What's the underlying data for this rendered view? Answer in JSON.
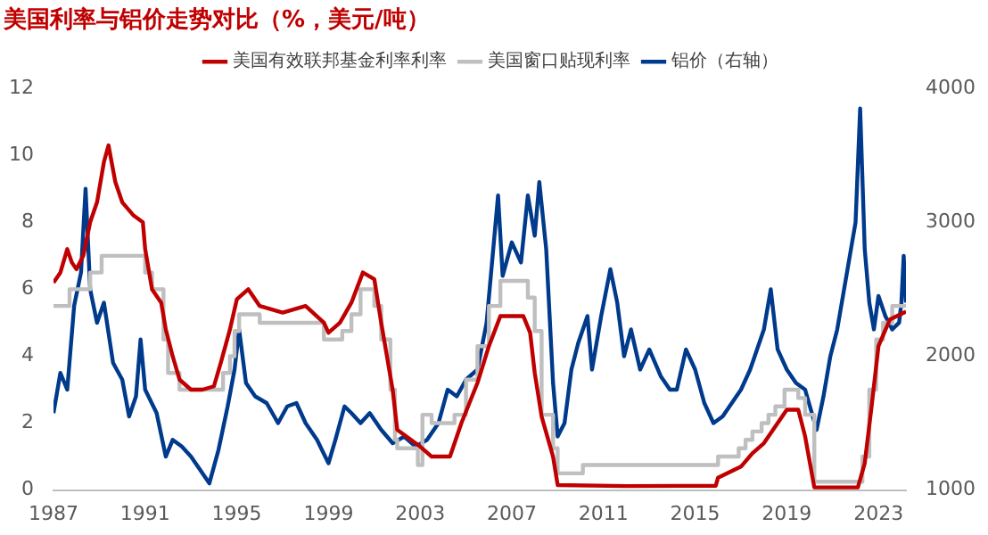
{
  "chart_data": {
    "type": "line",
    "title": "美国利率与铝价走势对比（%，美元/吨）",
    "xlim": [
      1987,
      2024.2
    ],
    "xticks": [
      1987,
      1991,
      1995,
      1999,
      2003,
      2007,
      2011,
      2015,
      2019,
      2023
    ],
    "ylim": [
      0,
      12
    ],
    "yticks": [
      0,
      2,
      4,
      6,
      8,
      10,
      12
    ],
    "y2lim": [
      1000,
      4000
    ],
    "y2ticks": [
      1000,
      2000,
      3000,
      4000
    ],
    "grid": false,
    "legend": "top",
    "marker": "none",
    "line_style": "solid",
    "series": [
      {
        "name": "美国有效联邦基金利率利率",
        "color": "#c00000",
        "x": [
          1987.0,
          1987.3,
          1987.6,
          1987.8,
          1988.0,
          1988.3,
          1988.6,
          1988.9,
          1989.2,
          1989.4,
          1989.7,
          1990.0,
          1990.5,
          1990.9,
          1991.0,
          1991.3,
          1991.7,
          1991.9,
          1992.2,
          1992.5,
          1993.0,
          1993.5,
          1994.0,
          1994.3,
          1994.7,
          1995.0,
          1995.5,
          1996.0,
          1997.0,
          1998.0,
          1998.8,
          1999.0,
          1999.5,
          2000.0,
          2000.5,
          2001.0,
          2001.3,
          2001.8,
          2002.0,
          2003.0,
          2003.5,
          2004.3,
          2004.8,
          2005.5,
          2006.0,
          2006.5,
          2007.5,
          2007.8,
          2008.0,
          2008.3,
          2008.8,
          2009.0,
          2012.0,
          2015.9,
          2016.0,
          2017.0,
          2017.5,
          2018.0,
          2018.5,
          2019.0,
          2019.5,
          2019.8,
          2020.2,
          2022.1,
          2022.4,
          2022.7,
          2023.0,
          2023.5,
          2024.2
        ],
        "values": [
          6.2,
          6.5,
          7.2,
          6.8,
          6.6,
          7.0,
          8.0,
          8.6,
          9.8,
          10.3,
          9.2,
          8.6,
          8.2,
          8.0,
          7.2,
          6.0,
          5.6,
          4.8,
          4.0,
          3.3,
          3.0,
          3.0,
          3.1,
          3.8,
          4.8,
          5.7,
          6.0,
          5.5,
          5.3,
          5.5,
          5.0,
          4.7,
          5.0,
          5.6,
          6.5,
          6.3,
          5.0,
          3.0,
          1.8,
          1.3,
          1.0,
          1.0,
          2.0,
          3.2,
          4.3,
          5.2,
          5.2,
          4.7,
          3.5,
          2.2,
          1.0,
          0.15,
          0.12,
          0.13,
          0.37,
          0.7,
          1.1,
          1.4,
          1.9,
          2.4,
          2.4,
          1.6,
          0.08,
          0.08,
          0.8,
          2.5,
          4.3,
          5.1,
          5.33
        ]
      },
      {
        "name": "美国窗口贴现利率",
        "type": "step",
        "color": "#bfbfbf",
        "x": [
          1987.0,
          1987.7,
          1988.6,
          1989.1,
          1991.0,
          1991.3,
          1991.8,
          1992.0,
          1992.5,
          1994.4,
          1994.7,
          1994.9,
          1995.1,
          1996.0,
          1998.8,
          1999.6,
          2000.0,
          2000.4,
          2001.0,
          2001.3,
          2001.7,
          2001.9,
          2002.0,
          2002.9,
          2003.1,
          2003.5,
          2004.5,
          2005.0,
          2005.5,
          2006.0,
          2006.5,
          2007.7,
          2008.0,
          2008.3,
          2008.8,
          2009.0,
          2010.1,
          2016.0,
          2016.9,
          2017.2,
          2017.5,
          2017.9,
          2018.2,
          2018.5,
          2018.9,
          2019.5,
          2019.8,
          2020.2,
          2022.3,
          2022.6,
          2022.9,
          2023.2,
          2023.6,
          2024.2
        ],
        "values": [
          5.5,
          6.0,
          6.5,
          7.0,
          6.5,
          6.0,
          4.5,
          3.5,
          3.0,
          3.5,
          4.0,
          4.75,
          5.25,
          5.0,
          4.5,
          4.75,
          5.25,
          6.0,
          5.5,
          4.5,
          3.0,
          1.5,
          1.25,
          0.75,
          2.25,
          2.0,
          2.25,
          3.3,
          4.3,
          5.5,
          6.25,
          5.75,
          4.75,
          2.25,
          1.25,
          0.5,
          0.75,
          1.0,
          1.25,
          1.5,
          1.75,
          2.0,
          2.25,
          2.5,
          3.0,
          2.75,
          2.25,
          0.25,
          1.0,
          3.0,
          4.5,
          5.0,
          5.5,
          5.5
        ]
      },
      {
        "name": "铝价（右轴）",
        "axis": "y2",
        "color": "#003a8c",
        "x": [
          1987.0,
          1987.3,
          1987.6,
          1987.9,
          1988.2,
          1988.4,
          1988.6,
          1988.9,
          1989.2,
          1989.6,
          1990.0,
          1990.3,
          1990.6,
          1990.8,
          1991.0,
          1991.5,
          1991.9,
          1992.2,
          1992.6,
          1993.0,
          1993.4,
          1993.8,
          1994.2,
          1994.6,
          1994.9,
          1995.1,
          1995.4,
          1995.8,
          1996.3,
          1996.8,
          1997.2,
          1997.6,
          1998.0,
          1998.5,
          1999.0,
          1999.3,
          1999.7,
          2000.0,
          2000.4,
          2000.8,
          2001.3,
          2001.8,
          2002.3,
          2002.8,
          2003.3,
          2003.8,
          2004.2,
          2004.6,
          2005.0,
          2005.5,
          2005.9,
          2006.4,
          2006.6,
          2007.0,
          2007.4,
          2007.7,
          2008.0,
          2008.2,
          2008.5,
          2008.8,
          2009.0,
          2009.3,
          2009.6,
          2009.9,
          2010.3,
          2010.5,
          2010.9,
          2011.3,
          2011.6,
          2011.9,
          2012.2,
          2012.6,
          2013.0,
          2013.5,
          2013.9,
          2014.2,
          2014.6,
          2015.0,
          2015.4,
          2015.8,
          2016.2,
          2016.6,
          2017.0,
          2017.4,
          2017.8,
          2018.0,
          2018.3,
          2018.6,
          2019.0,
          2019.4,
          2019.8,
          2020.3,
          2020.6,
          2020.9,
          2021.2,
          2021.5,
          2021.8,
          2022.0,
          2022.2,
          2022.4,
          2022.6,
          2022.8,
          2023.0,
          2023.3,
          2023.6,
          2023.9,
          2024.0,
          2024.1,
          2024.2
        ],
        "values": [
          1575,
          1875,
          1750,
          2375,
          2625,
          3250,
          2500,
          2250,
          2400,
          1950,
          1825,
          1550,
          1700,
          2125,
          1750,
          1575,
          1250,
          1375,
          1325,
          1250,
          1150,
          1050,
          1300,
          1625,
          1900,
          2200,
          1800,
          1700,
          1650,
          1500,
          1625,
          1650,
          1500,
          1375,
          1200,
          1375,
          1625,
          1575,
          1500,
          1575,
          1450,
          1350,
          1400,
          1325,
          1375,
          1500,
          1750,
          1700,
          1825,
          1900,
          2250,
          3200,
          2600,
          2850,
          2700,
          3200,
          2900,
          3300,
          2800,
          1800,
          1400,
          1500,
          1900,
          2100,
          2300,
          1900,
          2300,
          2650,
          2400,
          2000,
          2200,
          1900,
          2050,
          1850,
          1750,
          1750,
          2050,
          1900,
          1650,
          1500,
          1550,
          1650,
          1750,
          1900,
          2100,
          2200,
          2500,
          2050,
          1900,
          1800,
          1750,
          1450,
          1700,
          2000,
          2200,
          2500,
          2800,
          3000,
          3850,
          2800,
          2400,
          2200,
          2450,
          2300,
          2200,
          2250,
          2400,
          2750,
          2400
        ]
      }
    ]
  }
}
